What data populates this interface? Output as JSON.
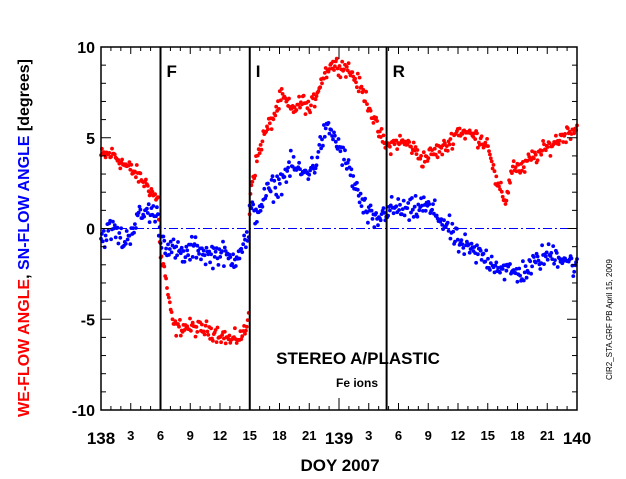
{
  "chart_data": {
    "type": "scatter",
    "title": "",
    "xlabel": "DOY 2007",
    "ylabel_parts": [
      "WE-FLOW ANGLE",
      ", ",
      "SN-FLOW ANGLE",
      " [degrees]"
    ],
    "ylabel_colors": [
      "#ff0000",
      "#000000",
      "#0000ff",
      "#000000"
    ],
    "xlim": [
      138,
      140
    ],
    "ylim": [
      -10,
      10
    ],
    "y_ticks": [
      10,
      5,
      0,
      -5,
      -10
    ],
    "y_tick_labels": [
      "10",
      "5",
      "0",
      "-5",
      "-10"
    ],
    "x_tick_labels": [
      {
        "x": 138.0,
        "label": "138",
        "size": "large"
      },
      {
        "x": 138.125,
        "label": "3",
        "size": "small"
      },
      {
        "x": 138.25,
        "label": "6",
        "size": "small"
      },
      {
        "x": 138.375,
        "label": "9",
        "size": "small"
      },
      {
        "x": 138.5,
        "label": "12",
        "size": "small"
      },
      {
        "x": 138.625,
        "label": "15",
        "size": "small"
      },
      {
        "x": 138.75,
        "label": "18",
        "size": "small"
      },
      {
        "x": 138.875,
        "label": "21",
        "size": "small"
      },
      {
        "x": 139.0,
        "label": "139",
        "size": "large"
      },
      {
        "x": 139.125,
        "label": "3",
        "size": "small"
      },
      {
        "x": 139.25,
        "label": "6",
        "size": "small"
      },
      {
        "x": 139.375,
        "label": "9",
        "size": "small"
      },
      {
        "x": 139.5,
        "label": "12",
        "size": "small"
      },
      {
        "x": 139.625,
        "label": "15",
        "size": "small"
      },
      {
        "x": 139.75,
        "label": "18",
        "size": "small"
      },
      {
        "x": 139.875,
        "label": "21",
        "size": "small"
      },
      {
        "x": 140.0,
        "label": "140",
        "size": "large"
      }
    ],
    "zero_line": {
      "y": 0,
      "color": "#0000ff",
      "style": "dash-dot"
    },
    "boundaries": [
      {
        "x": 138.25,
        "label": "F"
      },
      {
        "x": 138.625,
        "label": "I"
      },
      {
        "x": 139.2,
        "label": "R"
      }
    ],
    "annotation_main": "STEREO A/PLASTIC",
    "annotation_sub": "Fe ions",
    "side_note": "CIR2_STA.GRF PB April 15, 2009",
    "grid": false,
    "series": [
      {
        "color": "#ff0000",
        "profile": [
          [
            138.0,
            4.0
          ],
          [
            138.05,
            4.1
          ],
          [
            138.1,
            3.5
          ],
          [
            138.15,
            3.0
          ],
          [
            138.2,
            2.3
          ],
          [
            138.24,
            1.5
          ],
          [
            138.25,
            -1.5
          ],
          [
            138.27,
            -2.5
          ],
          [
            138.29,
            -4.5
          ],
          [
            138.31,
            -5.5
          ],
          [
            138.35,
            -5.4
          ],
          [
            138.4,
            -5.5
          ],
          [
            138.45,
            -5.6
          ],
          [
            138.5,
            -5.8
          ],
          [
            138.55,
            -6.2
          ],
          [
            138.6,
            -5.8
          ],
          [
            138.62,
            -5.2
          ],
          [
            138.625,
            2.0
          ],
          [
            138.65,
            3.5
          ],
          [
            138.68,
            5.0
          ],
          [
            138.72,
            6.0
          ],
          [
            138.76,
            7.3
          ],
          [
            138.8,
            6.5
          ],
          [
            138.85,
            7.0
          ],
          [
            138.88,
            6.5
          ],
          [
            138.92,
            8.0
          ],
          [
            138.96,
            9.0
          ],
          [
            139.0,
            9.0
          ],
          [
            139.04,
            8.8
          ],
          [
            139.08,
            8.0
          ],
          [
            139.12,
            7.0
          ],
          [
            139.16,
            5.5
          ],
          [
            139.2,
            4.5
          ],
          [
            139.25,
            4.8
          ],
          [
            139.3,
            4.6
          ],
          [
            139.35,
            3.8
          ],
          [
            139.4,
            4.2
          ],
          [
            139.45,
            4.5
          ],
          [
            139.5,
            5.4
          ],
          [
            139.55,
            5.2
          ],
          [
            139.6,
            4.9
          ],
          [
            139.63,
            4.6
          ],
          [
            139.66,
            2.5
          ],
          [
            139.7,
            1.5
          ],
          [
            139.73,
            3.5
          ],
          [
            139.77,
            3.2
          ],
          [
            139.8,
            3.8
          ],
          [
            139.85,
            4.2
          ],
          [
            139.9,
            4.7
          ],
          [
            139.95,
            5.2
          ],
          [
            140.0,
            5.6
          ]
        ]
      },
      {
        "color": "#0000ff",
        "profile": [
          [
            138.0,
            -0.5
          ],
          [
            138.05,
            0.0
          ],
          [
            138.1,
            -0.8
          ],
          [
            138.15,
            0.5
          ],
          [
            138.2,
            1.0
          ],
          [
            138.24,
            0.6
          ],
          [
            138.25,
            -0.5
          ],
          [
            138.3,
            -1.2
          ],
          [
            138.35,
            -1.5
          ],
          [
            138.4,
            -1.0
          ],
          [
            138.45,
            -1.5
          ],
          [
            138.5,
            -1.3
          ],
          [
            138.55,
            -1.8
          ],
          [
            138.6,
            -0.8
          ],
          [
            138.62,
            -0.5
          ],
          [
            138.625,
            1.0
          ],
          [
            138.65,
            0.8
          ],
          [
            138.7,
            2.0
          ],
          [
            138.75,
            2.5
          ],
          [
            138.8,
            3.5
          ],
          [
            138.85,
            3.0
          ],
          [
            138.9,
            3.5
          ],
          [
            138.93,
            5.0
          ],
          [
            138.96,
            5.5
          ],
          [
            139.0,
            4.5
          ],
          [
            139.05,
            3.0
          ],
          [
            139.1,
            1.2
          ],
          [
            139.15,
            0.3
          ],
          [
            139.2,
            1.0
          ],
          [
            139.25,
            1.1
          ],
          [
            139.3,
            0.9
          ],
          [
            139.35,
            1.3
          ],
          [
            139.4,
            0.9
          ],
          [
            139.45,
            0.2
          ],
          [
            139.5,
            -0.8
          ],
          [
            139.55,
            -1.2
          ],
          [
            139.6,
            -1.5
          ],
          [
            139.65,
            -1.9
          ],
          [
            139.7,
            -2.3
          ],
          [
            139.75,
            -2.5
          ],
          [
            139.8,
            -2.2
          ],
          [
            139.85,
            -1.6
          ],
          [
            139.9,
            -1.4
          ],
          [
            139.95,
            -1.6
          ],
          [
            140.0,
            -2.2
          ]
        ]
      }
    ]
  }
}
